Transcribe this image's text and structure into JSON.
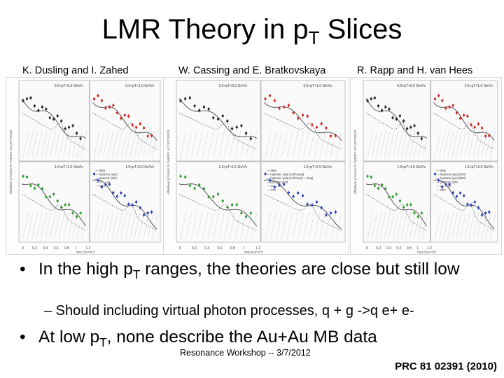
{
  "slide": {
    "title_main": "LMR Theory in p",
    "title_sub": "T",
    "title_end": " Slices",
    "authors": [
      "K. Dusling and I. Zahed",
      "W. Cassing and E. Bratkovskaya",
      "R. Rapp and H. van Hees"
    ],
    "bullet1": {
      "a": "In the high p",
      "sub": "T",
      "b": " ranges, the theories are close but still low"
    },
    "sub_bullet": "– Should including virtual photon processes, q + g ->q e+ e-",
    "bullet2": {
      "a": "At low p",
      "sub": "T",
      "b": ", none describe the Au+Au MB data"
    },
    "footer": "Resonance Workshop -- 3/7/2012",
    "reference": "PRC 81 02391 (2010)",
    "bullet_glyph": "•"
  },
  "figure": {
    "quadrant_colors": [
      "#222222",
      "#d42020",
      "#2a9a2a",
      "#2b3fc0"
    ],
    "panels": [
      {
        "quadrants": [
          "0.0<pT<0.5 GeV/c",
          "0.5<pT<1.0 GeV/c",
          "1.0<pT<1.5 GeV/c",
          "1.5<pT<2.0 GeV/c"
        ],
        "legend": [
          "data",
          "hadronic yield",
          "partonic yield",
          "cc → ee",
          "sum"
        ]
      },
      {
        "quadrants": [
          "0.0<pT<0.5 GeV/c",
          "0.5<pT<1.0 GeV/c",
          "1.0<pT<1.5 GeV/c",
          "1.5<pT<2.0 GeV/c"
        ],
        "legend": [
          "data",
          "hadronic yield (coll broad)",
          "hadronic yield (coll broad + drop)",
          "partonic yield",
          "cc → ee",
          "sum"
        ]
      },
      {
        "quadrants": [
          "0.0<pT<0.5 GeV/c",
          "0.5<pT<1.0 GeV/c",
          "1.0<pT<1.5 GeV/c",
          "1.5<pT<2.0 GeV/c"
        ],
        "legend": [
          "data",
          "hadronic yield (HM)",
          "hadronic yield (DM)",
          "partonic yield",
          "cc → ee",
          "sum"
        ]
      }
    ],
    "y_axis_label": "dN/dmee (c²/GeV) IN PHENIX ACCEPTANCE",
    "x_axis_label": "mee (GeV/c²)",
    "x_ticks": [
      "0",
      "0.2",
      "0.4",
      "0.6",
      "0.8",
      "1",
      "1.2"
    ]
  }
}
